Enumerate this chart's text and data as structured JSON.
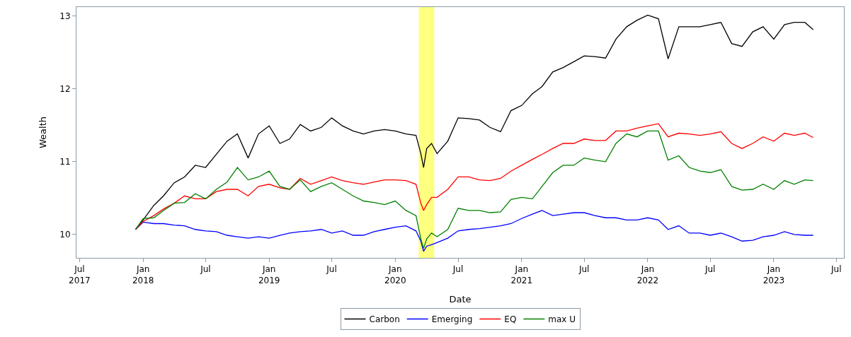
{
  "chart_data": {
    "type": "line",
    "xlabel": "Date",
    "ylabel": "Wealth",
    "x": [
      "2017-12-10",
      "2018-01-01",
      "2018-02-01",
      "2018-03-01",
      "2018-04-01",
      "2018-05-01",
      "2018-06-01",
      "2018-07-01",
      "2018-08-01",
      "2018-09-01",
      "2018-10-01",
      "2018-11-01",
      "2018-12-01",
      "2019-01-01",
      "2019-02-01",
      "2019-03-01",
      "2019-04-01",
      "2019-05-01",
      "2019-06-01",
      "2019-07-01",
      "2019-08-01",
      "2019-09-01",
      "2019-10-01",
      "2019-11-01",
      "2019-12-01",
      "2020-01-01",
      "2020-02-01",
      "2020-03-01",
      "2020-03-15",
      "2020-03-23",
      "2020-04-01",
      "2020-04-15",
      "2020-05-01",
      "2020-06-01",
      "2020-07-01",
      "2020-08-01",
      "2020-09-01",
      "2020-10-01",
      "2020-11-01",
      "2020-12-01",
      "2021-01-01",
      "2021-02-01",
      "2021-03-01",
      "2021-04-01",
      "2021-05-01",
      "2021-06-01",
      "2021-07-01",
      "2021-08-01",
      "2021-09-01",
      "2021-10-01",
      "2021-11-01",
      "2021-12-01",
      "2022-01-01",
      "2022-02-01",
      "2022-03-01",
      "2022-04-01",
      "2022-05-01",
      "2022-06-01",
      "2022-07-01",
      "2022-08-01",
      "2022-09-01",
      "2022-10-01",
      "2022-11-01",
      "2022-12-01",
      "2023-01-01",
      "2023-02-01",
      "2023-03-01",
      "2023-04-01",
      "2023-04-25"
    ],
    "series": [
      {
        "name": "Carbon",
        "color": "#000000",
        "values": [
          10.07,
          10.2,
          10.4,
          10.53,
          10.71,
          10.79,
          10.95,
          10.92,
          11.1,
          11.28,
          11.38,
          11.05,
          11.38,
          11.49,
          11.25,
          11.31,
          11.51,
          11.42,
          11.47,
          11.6,
          11.49,
          11.42,
          11.38,
          11.42,
          11.44,
          11.42,
          11.38,
          11.36,
          11.11,
          10.92,
          11.18,
          11.25,
          11.11,
          11.28,
          11.6,
          11.59,
          11.57,
          11.47,
          11.41,
          11.7,
          11.77,
          11.93,
          12.03,
          12.23,
          12.29,
          12.37,
          12.45,
          12.44,
          12.42,
          12.68,
          12.85,
          12.94,
          13.01,
          12.96,
          12.41,
          12.85,
          12.85,
          12.85,
          12.88,
          12.91,
          12.62,
          12.58,
          12.78,
          12.85,
          12.68,
          12.88,
          12.91,
          12.91,
          12.81
        ]
      },
      {
        "name": "Emerging",
        "color": "#0000ff",
        "values": [
          10.07,
          10.17,
          10.15,
          10.15,
          10.13,
          10.12,
          10.07,
          10.05,
          10.04,
          9.99,
          9.97,
          9.95,
          9.97,
          9.95,
          9.99,
          10.02,
          10.04,
          10.05,
          10.07,
          10.02,
          10.05,
          9.99,
          9.99,
          10.04,
          10.07,
          10.1,
          10.12,
          10.05,
          9.91,
          9.77,
          9.84,
          9.86,
          9.89,
          9.95,
          10.05,
          10.07,
          10.08,
          10.1,
          10.12,
          10.15,
          10.22,
          10.28,
          10.33,
          10.26,
          10.28,
          10.3,
          10.3,
          10.26,
          10.23,
          10.23,
          10.2,
          10.2,
          10.23,
          10.2,
          10.07,
          10.12,
          10.02,
          10.02,
          9.99,
          10.02,
          9.97,
          9.91,
          9.92,
          9.97,
          9.99,
          10.04,
          10.0,
          9.99,
          9.99
        ]
      },
      {
        "name": "EQ",
        "color": "#ff0000",
        "values": [
          10.07,
          10.18,
          10.26,
          10.35,
          10.43,
          10.53,
          10.49,
          10.49,
          10.59,
          10.62,
          10.62,
          10.53,
          10.66,
          10.69,
          10.64,
          10.62,
          10.77,
          10.69,
          10.74,
          10.79,
          10.74,
          10.71,
          10.69,
          10.72,
          10.75,
          10.75,
          10.74,
          10.69,
          10.43,
          10.33,
          10.41,
          10.51,
          10.51,
          10.62,
          10.79,
          10.79,
          10.75,
          10.74,
          10.77,
          10.87,
          10.95,
          11.03,
          11.1,
          11.18,
          11.25,
          11.25,
          11.31,
          11.29,
          11.29,
          11.42,
          11.42,
          11.46,
          11.49,
          11.52,
          11.34,
          11.39,
          11.38,
          11.36,
          11.38,
          11.41,
          11.25,
          11.18,
          11.25,
          11.34,
          11.28,
          11.39,
          11.36,
          11.39,
          11.33
        ]
      },
      {
        "name": "max U",
        "color": "#008000",
        "values": [
          10.07,
          10.22,
          10.23,
          10.33,
          10.43,
          10.44,
          10.56,
          10.49,
          10.62,
          10.72,
          10.92,
          10.75,
          10.79,
          10.87,
          10.66,
          10.62,
          10.75,
          10.59,
          10.66,
          10.71,
          10.62,
          10.53,
          10.46,
          10.44,
          10.41,
          10.46,
          10.33,
          10.26,
          9.94,
          9.81,
          9.94,
          10.02,
          9.97,
          10.07,
          10.36,
          10.33,
          10.33,
          10.3,
          10.31,
          10.48,
          10.51,
          10.49,
          10.66,
          10.85,
          10.95,
          10.95,
          11.05,
          11.02,
          11.0,
          11.25,
          11.38,
          11.34,
          11.42,
          11.42,
          11.02,
          11.08,
          10.92,
          10.87,
          10.85,
          10.89,
          10.66,
          10.61,
          10.62,
          10.69,
          10.62,
          10.74,
          10.69,
          10.75,
          10.74
        ]
      }
    ],
    "xlim": [
      "2017-06-22",
      "2023-07-23"
    ],
    "xticks": [
      {
        "value": "2017-07-01",
        "label": "Jul\n2017"
      },
      {
        "value": "2018-01-01",
        "label": "Jan\n2018"
      },
      {
        "value": "2018-07-01",
        "label": "Jul"
      },
      {
        "value": "2019-01-01",
        "label": "Jan\n2019"
      },
      {
        "value": "2019-07-01",
        "label": "Jul"
      },
      {
        "value": "2020-01-01",
        "label": "Jan\n2020"
      },
      {
        "value": "2020-07-01",
        "label": "Jul"
      },
      {
        "value": "2021-01-01",
        "label": "Jan\n2021"
      },
      {
        "value": "2021-07-01",
        "label": "Jul"
      },
      {
        "value": "2022-01-01",
        "label": "Jan\n2022"
      },
      {
        "value": "2022-07-01",
        "label": "Jul"
      },
      {
        "value": "2023-01-01",
        "label": "Jan\n2023"
      },
      {
        "value": "2023-07-01",
        "label": "Jul"
      }
    ],
    "ylim": [
      9.68,
      13.12
    ],
    "yticks": [
      10,
      11,
      12,
      13
    ],
    "bands": [
      {
        "axis": "x",
        "from": "2020-03-09",
        "to": "2020-04-23",
        "color": "#ffff80"
      }
    ],
    "grid": false,
    "legend": "bottom",
    "marker": "none",
    "line_style": "solid"
  }
}
